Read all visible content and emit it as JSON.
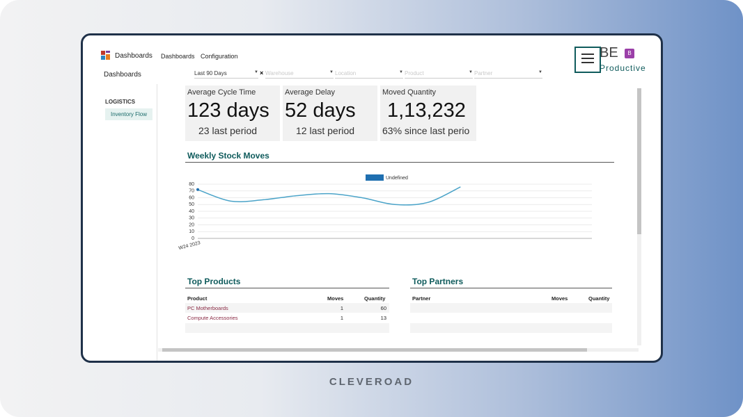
{
  "topbar": {
    "brand": "Dashboards",
    "menu": [
      "Dashboards",
      "Configuration"
    ]
  },
  "breadcrumb": "Dashboards",
  "filters": {
    "period": "Last 90 Days",
    "placeholders": [
      "Warehouse",
      "Location",
      "Product",
      "Partner"
    ]
  },
  "logo": {
    "badge": "B",
    "line1": "BE",
    "line2": "Productive"
  },
  "sidebar": {
    "section": "LOGISTICS",
    "item": "Inventory Flow"
  },
  "kpis": [
    {
      "label": "Average Cycle Time",
      "value": "123 days",
      "sub": "23 last period"
    },
    {
      "label": "Average Delay",
      "value": "52 days",
      "sub": "12 last period"
    },
    {
      "label": "Moved Quantity",
      "value": "1,13,232",
      "sub": "63% since last perio"
    }
  ],
  "chart_data": {
    "type": "line",
    "title": "Weekly Stock Moves",
    "categories": [
      "W24 2023",
      null,
      null,
      null,
      null,
      null,
      null,
      null,
      null,
      null,
      null,
      null,
      null
    ],
    "series": [
      {
        "name": "Undefined",
        "color": "#4aa3c8",
        "values": [
          72,
          55,
          57,
          63,
          66,
          60,
          50,
          53,
          76,
          null,
          null,
          null,
          null
        ]
      }
    ],
    "ylim": [
      0,
      80
    ],
    "yticks": [
      0,
      10,
      20,
      30,
      40,
      50,
      60,
      70,
      80
    ],
    "grid": true,
    "legend_color": "#1f6fb0"
  },
  "top_products": {
    "title": "Top Products",
    "headers": [
      "Product",
      "Moves",
      "Quantity"
    ],
    "rows": [
      [
        "PC Motherboards",
        1,
        60
      ],
      [
        "Compute Accessories",
        1,
        13
      ]
    ]
  },
  "top_partners": {
    "title": "Top Partners",
    "headers": [
      "Partner",
      "Moves",
      "Quantity"
    ]
  },
  "footer": "CLEVEROAD"
}
